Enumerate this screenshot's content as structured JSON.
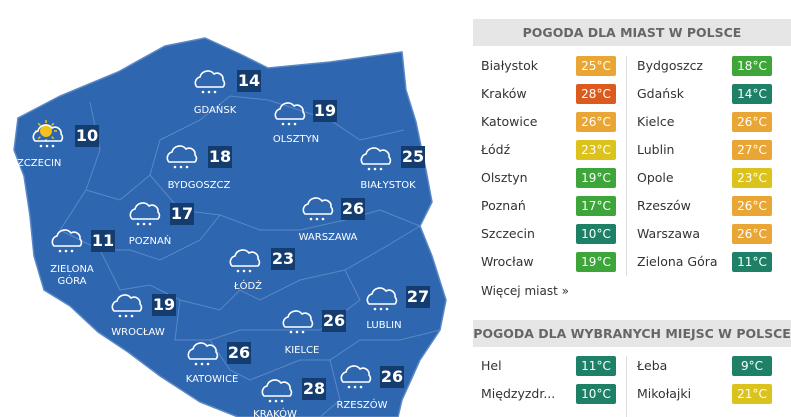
{
  "map": {
    "cities": [
      {
        "name": "GDAŃSK",
        "temp": 14
      },
      {
        "name": "OLSZTYN",
        "temp": 19
      },
      {
        "name": "SZCZECIN",
        "temp": 10
      },
      {
        "name": "BYDGOSZCZ",
        "temp": 18
      },
      {
        "name": "BIAŁYSTOK",
        "temp": 25
      },
      {
        "name": "POZNAŃ",
        "temp": 17
      },
      {
        "name": "WARSZAWA",
        "temp": 26
      },
      {
        "name": "ZIELONA GÓRA",
        "temp": 11
      },
      {
        "name": "ŁÓDŹ",
        "temp": 23
      },
      {
        "name": "LUBLIN",
        "temp": 27
      },
      {
        "name": "WROCŁAW",
        "temp": 19
      },
      {
        "name": "KIELCE",
        "temp": 26
      },
      {
        "name": "KATOWICE",
        "temp": 26
      },
      {
        "name": "RZESZÓW",
        "temp": 26
      },
      {
        "name": "KRAKÓW",
        "temp": 28
      }
    ]
  },
  "cities_panel": {
    "title": "POGODA DLA MIAST W POLSCE",
    "left": [
      {
        "name": "Białystok",
        "temp": "25°C",
        "color": "#e9a635"
      },
      {
        "name": "Kraków",
        "temp": "28°C",
        "color": "#db5a1e"
      },
      {
        "name": "Katowice",
        "temp": "26°C",
        "color": "#e9a635"
      },
      {
        "name": "Łódź",
        "temp": "23°C",
        "color": "#dcc21c"
      },
      {
        "name": "Olsztyn",
        "temp": "19°C",
        "color": "#3ea53a"
      },
      {
        "name": "Poznań",
        "temp": "17°C",
        "color": "#3ea53a"
      },
      {
        "name": "Szczecin",
        "temp": "10°C",
        "color": "#1f8068"
      },
      {
        "name": "Wrocław",
        "temp": "19°C",
        "color": "#3ea53a"
      }
    ],
    "right": [
      {
        "name": "Bydgoszcz",
        "temp": "18°C",
        "color": "#3ea53a"
      },
      {
        "name": "Gdańsk",
        "temp": "14°C",
        "color": "#1f8068"
      },
      {
        "name": "Kielce",
        "temp": "26°C",
        "color": "#e9a635"
      },
      {
        "name": "Lublin",
        "temp": "27°C",
        "color": "#e9a635"
      },
      {
        "name": "Opole",
        "temp": "23°C",
        "color": "#dcc21c"
      },
      {
        "name": "Rzeszów",
        "temp": "26°C",
        "color": "#e9a635"
      },
      {
        "name": "Warszawa",
        "temp": "26°C",
        "color": "#e9a635"
      },
      {
        "name": "Zielona Góra",
        "temp": "11°C",
        "color": "#1f8068"
      }
    ],
    "more_link": "Więcej miast »"
  },
  "places_panel": {
    "title": "POGODA DLA WYBRANYCH MIEJSC W POLSCE",
    "left": [
      {
        "name": "Hel",
        "temp": "11°C",
        "color": "#1f8068"
      },
      {
        "name": "Międzyzdr...",
        "temp": "10°C",
        "color": "#1f8068"
      }
    ],
    "right": [
      {
        "name": "Łeba",
        "temp": "9°C",
        "color": "#1f8068"
      },
      {
        "name": "Mikołajki",
        "temp": "21°C",
        "color": "#dcc21c"
      }
    ]
  }
}
